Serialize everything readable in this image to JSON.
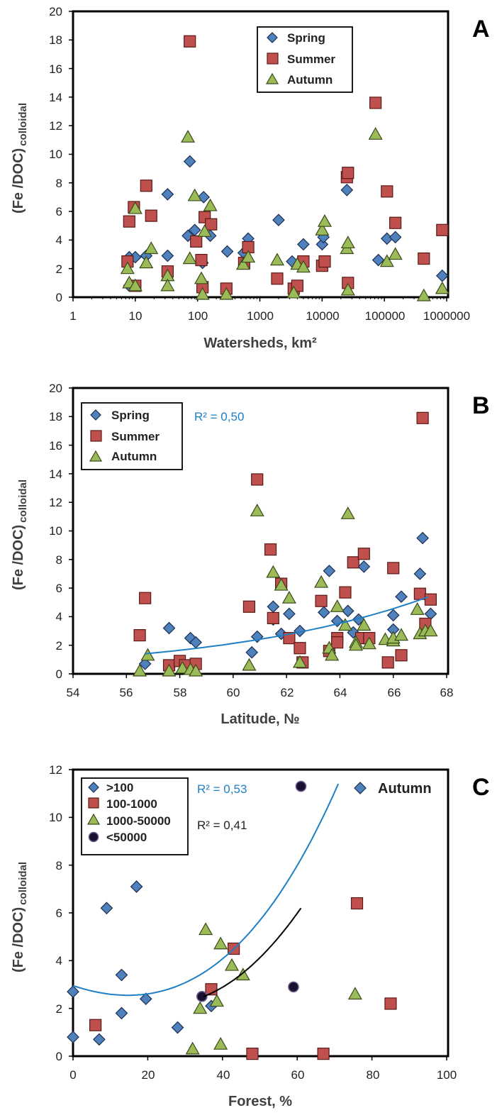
{
  "colors": {
    "spring": "#4f81bd",
    "summer": "#c0504d",
    "autumn": "#9bbb59",
    "lt50000": "#1a1030",
    "trend_blue": "#1f7fc4",
    "trend_black": "#000000"
  },
  "chart_data": [
    {
      "panel": "A",
      "type": "scatter",
      "log_x": true,
      "xlabel": "Watersheds, km²",
      "ylabel_main": "(Fe /DOC)",
      "ylabel_sub": "colloidal",
      "xlim": [
        1,
        1000000
      ],
      "ylim": [
        0,
        20
      ],
      "xticks": [
        1,
        10,
        100,
        1000,
        10000,
        100000,
        1000000
      ],
      "xtick_labels": [
        "1",
        "10",
        "100",
        "1000",
        "10000",
        "100000",
        "1000000"
      ],
      "yticks": [
        0,
        2,
        4,
        6,
        8,
        10,
        12,
        14,
        16,
        18,
        20
      ],
      "legend": [
        "Spring",
        "Summer",
        "Autumn"
      ],
      "series": [
        {
          "name": "Spring",
          "marker": "diamond",
          "color": "#4f81bd",
          "points": [
            [
              8,
              0.8
            ],
            [
              8,
              2.8
            ],
            [
              10,
              2.8
            ],
            [
              15,
              2.9
            ],
            [
              33,
              7.2
            ],
            [
              33,
              2.9
            ],
            [
              70,
              4.3
            ],
            [
              75,
              9.5
            ],
            [
              90,
              4.7
            ],
            [
              120,
              2.4
            ],
            [
              125,
              7
            ],
            [
              160,
              4.3
            ],
            [
              300,
              3.2
            ],
            [
              550,
              3.1
            ],
            [
              650,
              4.1
            ],
            [
              2000,
              5.4
            ],
            [
              3300,
              2.5
            ],
            [
              5000,
              3.7
            ],
            [
              10000,
              3.7
            ],
            [
              10500,
              4.2
            ],
            [
              25000,
              7.5
            ],
            [
              80000,
              2.6
            ],
            [
              110000,
              4.1
            ],
            [
              150000,
              4.2
            ],
            [
              850000,
              1.5
            ]
          ]
        },
        {
          "name": "Summer",
          "marker": "square",
          "color": "#c0504d",
          "points": [
            [
              7.5,
              2.5
            ],
            [
              8,
              5.3
            ],
            [
              9.5,
              6.3
            ],
            [
              10,
              0.8
            ],
            [
              15,
              7.8
            ],
            [
              18,
              5.7
            ],
            [
              33,
              1.8
            ],
            [
              75,
              17.9
            ],
            [
              95,
              3.9
            ],
            [
              115,
              2.6
            ],
            [
              120,
              0.7
            ],
            [
              130,
              5.6
            ],
            [
              165,
              5.1
            ],
            [
              290,
              0.6
            ],
            [
              560,
              2.4
            ],
            [
              650,
              3.5
            ],
            [
              1900,
              1.3
            ],
            [
              3500,
              0.6
            ],
            [
              4000,
              0.8
            ],
            [
              5000,
              2.5
            ],
            [
              10000,
              2.2
            ],
            [
              11000,
              2.5
            ],
            [
              25000,
              8.4
            ],
            [
              26000,
              8.7
            ],
            [
              26000,
              1.0
            ],
            [
              72000,
              13.6
            ],
            [
              110000,
              7.4
            ],
            [
              150000,
              5.2
            ],
            [
              430000,
              2.7
            ],
            [
              850000,
              4.7
            ]
          ]
        },
        {
          "name": "Autumn",
          "marker": "triangle",
          "color": "#9bbb59",
          "points": [
            [
              7.5,
              2.0
            ],
            [
              8,
              1.0
            ],
            [
              10,
              6.2
            ],
            [
              10,
              0.8
            ],
            [
              15,
              2.4
            ],
            [
              18,
              3.4
            ],
            [
              33,
              1.5
            ],
            [
              33,
              0.8
            ],
            [
              70,
              11.2
            ],
            [
              75,
              2.7
            ],
            [
              90,
              7.1
            ],
            [
              115,
              1.3
            ],
            [
              120,
              0.2
            ],
            [
              130,
              4.6
            ],
            [
              160,
              6.4
            ],
            [
              290,
              0.2
            ],
            [
              540,
              2.3
            ],
            [
              650,
              2.8
            ],
            [
              1900,
              2.6
            ],
            [
              3500,
              0.3
            ],
            [
              4000,
              2.3
            ],
            [
              5000,
              2.1
            ],
            [
              10000,
              4.7
            ],
            [
              11000,
              5.3
            ],
            [
              25000,
              3.4
            ],
            [
              26000,
              3.8
            ],
            [
              26000,
              0.5
            ],
            [
              72000,
              11.4
            ],
            [
              110000,
              2.5
            ],
            [
              150000,
              3.0
            ],
            [
              430000,
              0.1
            ],
            [
              850000,
              0.6
            ]
          ]
        }
      ]
    },
    {
      "panel": "B",
      "type": "scatter",
      "xlabel": "Latitude, №",
      "ylabel_main": "(Fe /DOC)",
      "ylabel_sub": "colloidal",
      "xlim": [
        54,
        68
      ],
      "ylim": [
        0,
        20
      ],
      "xticks": [
        54,
        56,
        58,
        60,
        62,
        64,
        66,
        68
      ],
      "xtick_labels": [
        "54",
        "56",
        "58",
        "60",
        "62",
        "64",
        "66",
        "68"
      ],
      "yticks": [
        0,
        2,
        4,
        6,
        8,
        10,
        12,
        14,
        16,
        18,
        20
      ],
      "legend": [
        "Spring",
        "Summer",
        "Autumn"
      ],
      "r2_label": "R² = 0,50",
      "trend": {
        "kind": "exp",
        "x": [
          56.7,
          67.3
        ],
        "a": 1.4,
        "b": 0.127,
        "x0": 56.7
      },
      "series": [
        {
          "name": "Spring",
          "marker": "diamond",
          "color": "#4f81bd",
          "points": [
            [
              56.7,
              0.7
            ],
            [
              57.6,
              3.2
            ],
            [
              58.4,
              2.5
            ],
            [
              58.6,
              2.2
            ],
            [
              60.7,
              1.5
            ],
            [
              60.9,
              2.6
            ],
            [
              61.5,
              4.7
            ],
            [
              61.5,
              3.8
            ],
            [
              61.8,
              2.8
            ],
            [
              62.1,
              4.2
            ],
            [
              62.5,
              3.0
            ],
            [
              62.6,
              0.8
            ],
            [
              63.4,
              4.3
            ],
            [
              63.6,
              7.2
            ],
            [
              63.9,
              3.7
            ],
            [
              64.3,
              4.4
            ],
            [
              64.5,
              2.9
            ],
            [
              64.7,
              3.8
            ],
            [
              64.9,
              7.5
            ],
            [
              66,
              4.1
            ],
            [
              66,
              3.1
            ],
            [
              66.3,
              5.4
            ],
            [
              67,
              7.0
            ],
            [
              67.1,
              9.5
            ],
            [
              67.4,
              4.2
            ]
          ]
        },
        {
          "name": "Summer",
          "marker": "square",
          "color": "#c0504d",
          "points": [
            [
              56.5,
              2.7
            ],
            [
              56.7,
              5.3
            ],
            [
              57.6,
              0.6
            ],
            [
              58,
              0.9
            ],
            [
              58.2,
              0.6
            ],
            [
              58.6,
              0.7
            ],
            [
              60.6,
              4.7
            ],
            [
              60.9,
              13.6
            ],
            [
              61.4,
              8.7
            ],
            [
              61.5,
              3.9
            ],
            [
              61.8,
              6.3
            ],
            [
              62.1,
              2.5
            ],
            [
              62.5,
              1.8
            ],
            [
              62.6,
              0.8
            ],
            [
              63.3,
              5.1
            ],
            [
              63.6,
              1.6
            ],
            [
              63.9,
              2.5
            ],
            [
              63.9,
              2.2
            ],
            [
              64.2,
              5.7
            ],
            [
              64.5,
              7.8
            ],
            [
              64.9,
              8.4
            ],
            [
              64.8,
              2.5
            ],
            [
              65.1,
              2.5
            ],
            [
              65.8,
              0.8
            ],
            [
              66,
              7.4
            ],
            [
              66.3,
              1.3
            ],
            [
              67,
              5.6
            ],
            [
              67.1,
              17.9
            ],
            [
              67.2,
              3.5
            ],
            [
              67.4,
              5.2
            ]
          ]
        },
        {
          "name": "Autumn",
          "marker": "triangle",
          "color": "#9bbb59",
          "points": [
            [
              56.5,
              0.2
            ],
            [
              56.8,
              1.3
            ],
            [
              57.6,
              0.2
            ],
            [
              58.1,
              0.4
            ],
            [
              58.4,
              0.3
            ],
            [
              58.6,
              0.2
            ],
            [
              60.6,
              0.6
            ],
            [
              60.9,
              11.4
            ],
            [
              61.5,
              7.1
            ],
            [
              61.8,
              6.2
            ],
            [
              62.1,
              5.3
            ],
            [
              62.5,
              0.8
            ],
            [
              63.3,
              6.4
            ],
            [
              63.6,
              1.8
            ],
            [
              63.7,
              1.3
            ],
            [
              63.9,
              4.7
            ],
            [
              64.2,
              3.4
            ],
            [
              64.3,
              11.2
            ],
            [
              64.6,
              2.2
            ],
            [
              64.6,
              2.0
            ],
            [
              64.9,
              3.4
            ],
            [
              65.1,
              2.1
            ],
            [
              65.7,
              2.4
            ],
            [
              66,
              2.3
            ],
            [
              66,
              2.5
            ],
            [
              66.3,
              2.7
            ],
            [
              66.9,
              4.5
            ],
            [
              67,
              2.8
            ],
            [
              67.2,
              3.0
            ],
            [
              67.4,
              3.0
            ]
          ]
        }
      ]
    },
    {
      "panel": "C",
      "type": "scatter",
      "xlabel": "Forest, %",
      "ylabel_main": "(Fe /DOC)",
      "ylabel_sub": "colloidal",
      "xlim": [
        0,
        100
      ],
      "ylim": [
        0,
        12
      ],
      "xticks": [
        0,
        20,
        40,
        60,
        80,
        100
      ],
      "xtick_labels": [
        "0",
        "20",
        "40",
        "60",
        "80",
        "100"
      ],
      "yticks": [
        0,
        2,
        4,
        6,
        8,
        10,
        12
      ],
      "legend": [
        ">100",
        "100-1000",
        "1000-50000",
        "<50000"
      ],
      "season_label": "Autumn",
      "r2_labels": [
        "R² = 0,53",
        "R² = 0,41"
      ],
      "trends": [
        {
          "name": "fit-all",
          "color": "#1f7fc4",
          "x": [
            0,
            71
          ],
          "coef": [
            2.95,
            -0.0516,
            0.00146,
            1.33e-05
          ]
        },
        {
          "name": "fit-lt50000",
          "color": "#000000",
          "x": [
            35,
            61
          ],
          "coef": [
            2.5,
            0.0,
            0.0,
            0.0
          ]
        }
      ],
      "series": [
        {
          "name": ">100",
          "marker": "diamond",
          "color": "#4f81bd",
          "points": [
            [
              0,
              2.7
            ],
            [
              0,
              0.8
            ],
            [
              7,
              0.7
            ],
            [
              9,
              6.2
            ],
            [
              13,
              3.4
            ],
            [
              13,
              1.8
            ],
            [
              17,
              7.1
            ],
            [
              19.5,
              2.4
            ],
            [
              28,
              1.2
            ],
            [
              37,
              2.1
            ]
          ]
        },
        {
          "name": "100-1000",
          "marker": "square",
          "color": "#c0504d",
          "points": [
            [
              6,
              1.3
            ],
            [
              37,
              2.8
            ],
            [
              43,
              4.5
            ],
            [
              48,
              0.1
            ],
            [
              67,
              0.1
            ],
            [
              76,
              6.4
            ],
            [
              85,
              2.2
            ]
          ]
        },
        {
          "name": "1000-50000",
          "marker": "triangle",
          "color": "#9bbb59",
          "points": [
            [
              34,
              2.0
            ],
            [
              35.5,
              5.3
            ],
            [
              32,
              0.3
            ],
            [
              38.5,
              2.3
            ],
            [
              39.5,
              4.7
            ],
            [
              39.5,
              0.5
            ],
            [
              42.5,
              3.8
            ],
            [
              45.5,
              3.4
            ],
            [
              75.5,
              2.6
            ]
          ]
        },
        {
          "name": "<50000",
          "marker": "circle",
          "color": "#1a1030",
          "points": [
            [
              34.5,
              2.5
            ],
            [
              59,
              2.9
            ],
            [
              61,
              11.3
            ]
          ]
        }
      ]
    }
  ]
}
